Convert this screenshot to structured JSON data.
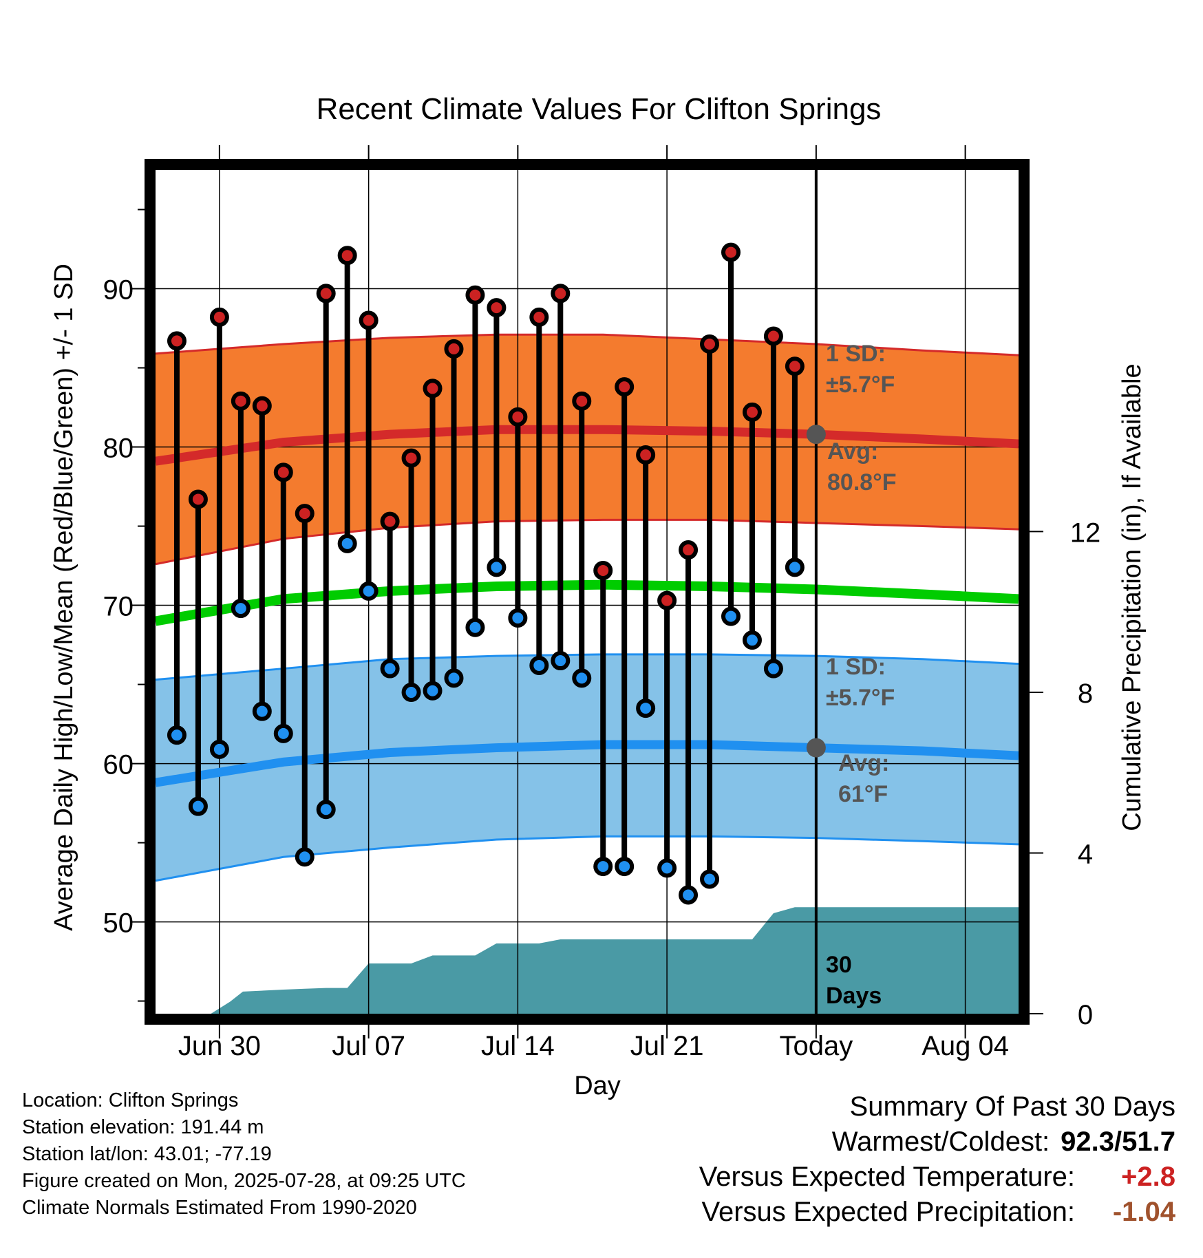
{
  "title": "Recent Climate Values For Clifton Springs",
  "xlabel": "Day",
  "ylabel_left": "Average Daily High/Low/Mean (Red/Blue/Green) +/- 1 SD",
  "ylabel_right": "Cumulative Precipitation (in), If Available",
  "annotations": {
    "high_sd_line1": "1 SD:",
    "high_sd_line2": "±5.7°F",
    "high_avg_line1": "Avg:",
    "high_avg_line2": "80.8°F",
    "low_sd_line1": "1 SD:",
    "low_sd_line2": "±5.7°F",
    "low_avg_line1": "Avg:",
    "low_avg_line2": "61°F",
    "days_line1": "30",
    "days_line2": "Days"
  },
  "footer": {
    "location": "Location: Clifton Springs",
    "elevation": "Station elevation: 191.44 m",
    "latlon": "Station lat/lon: 43.01; -77.19",
    "created": "Figure created on Mon, 2025-07-28, at 09:25 UTC",
    "normals": "Climate Normals Estimated From 1990-2020"
  },
  "summary": {
    "title": "Summary Of Past 30 Days",
    "warmest_label": "Warmest/Coldest:",
    "warmest_value": "92.3/51.7",
    "temp_label": "Versus Expected Temperature:",
    "temp_value": "+2.8",
    "precip_label": "Versus Expected Precipitation:",
    "precip_value": "-1.04"
  },
  "colors": {
    "high_band": "#f47b2e",
    "high_line": "#d42a2a",
    "low_band": "#85c2e8",
    "low_line": "#2090f0",
    "mean_line": "#00cc00",
    "precip": "#4a9aa5",
    "high_marker": "#cc2222",
    "low_marker": "#2090f0",
    "temp_value": "#cc2222",
    "precip_value": "#a0522d",
    "annotation": "#555555"
  },
  "chart_data": {
    "type": "line",
    "x_tick_labels": [
      "Jun 30",
      "Jul 07",
      "Jul 14",
      "Jul 21",
      "Today",
      "Aug 04"
    ],
    "x_tick_days": [
      2,
      9,
      16,
      23,
      30,
      37
    ],
    "x_range_days": [
      -1,
      39.5
    ],
    "today_day": 30,
    "y_left_ticks": [
      50,
      60,
      70,
      80,
      90
    ],
    "y_left_range": [
      44.2,
      97.5
    ],
    "y_right_ticks": [
      0,
      4,
      8,
      12
    ],
    "y_right_range": [
      0,
      21
    ],
    "grid": true,
    "daily_temps": {
      "days": [
        0,
        1,
        2,
        3,
        4,
        5,
        6,
        7,
        8,
        9,
        10,
        11,
        12,
        13,
        14,
        15,
        16,
        17,
        18,
        19,
        20,
        21,
        22,
        23,
        24,
        25,
        26,
        27,
        28,
        29
      ],
      "high": [
        86.7,
        76.7,
        88.2,
        82.9,
        82.6,
        78.4,
        75.8,
        89.7,
        92.1,
        88.0,
        75.3,
        79.3,
        83.7,
        86.2,
        89.6,
        88.8,
        81.9,
        88.2,
        89.7,
        82.9,
        72.2,
        83.8,
        79.5,
        70.3,
        73.5,
        86.5,
        92.3,
        82.2,
        87.0,
        85.1
      ],
      "low": [
        61.8,
        57.3,
        60.9,
        69.8,
        63.3,
        61.9,
        54.1,
        57.1,
        73.9,
        70.9,
        66.0,
        64.5,
        64.6,
        65.4,
        68.6,
        72.4,
        69.2,
        66.2,
        66.5,
        65.4,
        53.5,
        53.5,
        63.5,
        53.4,
        51.7,
        52.7,
        69.3,
        67.8,
        66.0,
        72.4
      ]
    },
    "normals": {
      "days": [
        -1,
        5,
        10,
        15,
        20,
        25,
        30,
        35,
        39.5
      ],
      "high_avg": [
        79.1,
        80.3,
        80.8,
        81.1,
        81.1,
        81.0,
        80.8,
        80.5,
        80.2
      ],
      "high_upper": [
        85.9,
        86.5,
        86.9,
        87.1,
        87.1,
        86.8,
        86.5,
        86.1,
        85.8
      ],
      "high_lower": [
        72.6,
        74.2,
        74.9,
        75.3,
        75.4,
        75.4,
        75.2,
        75.0,
        74.8
      ],
      "mean": [
        69.0,
        70.4,
        70.9,
        71.2,
        71.3,
        71.2,
        71.0,
        70.7,
        70.4
      ],
      "low_avg": [
        58.8,
        60.1,
        60.7,
        61.0,
        61.2,
        61.2,
        61.0,
        60.8,
        60.5
      ],
      "low_upper": [
        65.3,
        66.0,
        66.6,
        66.8,
        66.9,
        66.9,
        66.8,
        66.6,
        66.3
      ],
      "low_lower": [
        52.6,
        54.1,
        54.7,
        55.2,
        55.4,
        55.4,
        55.3,
        55.1,
        54.9
      ]
    },
    "precip_cumulative": {
      "days": [
        -1,
        1.6,
        2.5,
        3.1,
        5.0,
        6.0,
        7.0,
        8.0,
        9.0,
        10.0,
        11.0,
        12.0,
        13.0,
        14.0,
        15.0,
        16.0,
        17.0,
        18.0,
        19.0,
        27.0,
        28.0,
        29.0,
        39.5
      ],
      "values": [
        0,
        0,
        0.3,
        0.55,
        0.6,
        0.62,
        0.64,
        0.64,
        1.25,
        1.25,
        1.25,
        1.45,
        1.45,
        1.45,
        1.75,
        1.75,
        1.75,
        1.85,
        1.85,
        1.85,
        2.5,
        2.65,
        2.65
      ]
    }
  }
}
